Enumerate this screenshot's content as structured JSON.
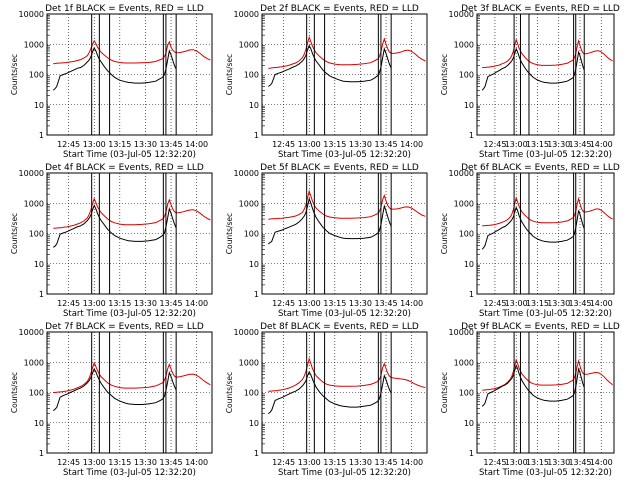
{
  "chart_data": {
    "type": "line",
    "layout": "3x3 grid of panels",
    "common": {
      "xlabel": "Start Time (03-Jul-05 12:32:20)",
      "ylabel": "Counts/sec",
      "x_tick_labels": [
        "12:45",
        "13:00",
        "13:15",
        "13:30",
        "13:45",
        "14:00"
      ],
      "x_tick_minutes": [
        45,
        60,
        75,
        90,
        105,
        120
      ],
      "xlim_minutes_after_12h": [
        32.33,
        129
      ],
      "yscale": "log",
      "ylim": [
        1,
        10000
      ],
      "y_tick_labels": [
        "1",
        "10",
        "100",
        "1000",
        "10000"
      ],
      "y_tick_values": [
        1,
        10,
        100,
        1000,
        10000
      ],
      "vertical_markers_minutes": [
        58.5,
        63,
        69,
        100.5,
        102,
        108
      ],
      "series": [
        {
          "name": "Events",
          "legend_word": "BLACK",
          "color": "#000000"
        },
        {
          "name": "LLD",
          "legend_word": "RED",
          "color": "#dd0000"
        }
      ],
      "time_minutes": [
        36,
        37,
        38,
        40,
        41,
        42,
        44,
        46,
        48,
        50,
        52,
        54,
        56,
        57,
        58,
        59,
        60,
        61,
        62,
        63,
        64,
        66,
        68,
        70,
        72,
        75,
        78,
        80,
        84,
        88,
        92,
        96,
        98,
        100,
        101,
        102,
        103,
        104,
        105,
        106,
        107,
        108,
        110,
        112,
        114,
        116,
        118,
        120,
        122,
        124,
        126,
        128
      ],
      "black_start_minute": 36,
      "black_end_minute": 108
    },
    "panels": [
      {
        "title": "Det 1f BLACK = Events, RED = LLD",
        "black": [
          30,
          34,
          40,
          90,
          95,
          100,
          110,
          125,
          140,
          160,
          170,
          200,
          260,
          300,
          380,
          550,
          750,
          600,
          420,
          320,
          260,
          180,
          130,
          100,
          80,
          65,
          58,
          55,
          52,
          52,
          55,
          60,
          70,
          80,
          95,
          150,
          300,
          600,
          450,
          300,
          200,
          150,
          null,
          null,
          null,
          null,
          null,
          null,
          null,
          null,
          null,
          null
        ],
        "red": [
          230,
          230,
          235,
          240,
          240,
          245,
          250,
          260,
          270,
          290,
          310,
          350,
          420,
          520,
          700,
          1000,
          1300,
          1050,
          800,
          650,
          540,
          430,
          350,
          300,
          270,
          250,
          240,
          240,
          240,
          245,
          250,
          270,
          300,
          330,
          380,
          500,
          900,
          1200,
          800,
          650,
          560,
          520,
          530,
          560,
          600,
          650,
          660,
          600,
          500,
          400,
          340,
          300
        ]
      },
      {
        "title": "Det 2f BLACK = Events, RED = LLD",
        "black": [
          40,
          44,
          50,
          100,
          105,
          110,
          120,
          135,
          150,
          170,
          190,
          220,
          280,
          330,
          420,
          650,
          900,
          700,
          480,
          360,
          280,
          200,
          140,
          110,
          90,
          75,
          65,
          60,
          58,
          58,
          60,
          65,
          75,
          90,
          110,
          170,
          350,
          700,
          500,
          330,
          220,
          160,
          null,
          null,
          null,
          null,
          null,
          null,
          null,
          null,
          null,
          null
        ],
        "red": [
          160,
          160,
          165,
          170,
          170,
          175,
          180,
          190,
          200,
          220,
          240,
          280,
          360,
          460,
          650,
          1100,
          1700,
          1200,
          850,
          650,
          520,
          400,
          320,
          270,
          240,
          220,
          210,
          210,
          210,
          215,
          225,
          245,
          280,
          320,
          380,
          550,
          1000,
          1500,
          1000,
          700,
          560,
          500,
          500,
          520,
          560,
          620,
          640,
          580,
          480,
          380,
          320,
          280
        ]
      },
      {
        "title": "Det 3f BLACK = Events, RED = LLD",
        "black": [
          30,
          34,
          40,
          85,
          90,
          95,
          105,
          120,
          135,
          155,
          170,
          200,
          250,
          290,
          360,
          500,
          700,
          560,
          400,
          300,
          240,
          170,
          125,
          100,
          80,
          66,
          58,
          55,
          52,
          52,
          55,
          60,
          68,
          78,
          95,
          150,
          280,
          550,
          420,
          280,
          190,
          140,
          null,
          null,
          null,
          null,
          null,
          null,
          null,
          null,
          null,
          null
        ],
        "red": [
          170,
          170,
          172,
          175,
          175,
          180,
          185,
          195,
          205,
          225,
          245,
          280,
          350,
          440,
          600,
          950,
          1400,
          1050,
          760,
          600,
          490,
          380,
          300,
          255,
          230,
          210,
          200,
          200,
          200,
          205,
          215,
          235,
          265,
          300,
          350,
          480,
          850,
          1300,
          900,
          650,
          530,
          480,
          490,
          520,
          560,
          600,
          610,
          560,
          470,
          380,
          320,
          280
        ]
      },
      {
        "title": "Det 4f BLACK = Events, RED = LLD",
        "black": [
          35,
          38,
          45,
          95,
          100,
          105,
          115,
          130,
          145,
          165,
          180,
          210,
          270,
          320,
          400,
          600,
          850,
          650,
          450,
          340,
          270,
          190,
          135,
          105,
          85,
          70,
          62,
          58,
          55,
          55,
          58,
          63,
          72,
          85,
          100,
          160,
          320,
          650,
          470,
          310,
          210,
          150,
          null,
          null,
          null,
          null,
          null,
          null,
          null,
          null,
          null,
          null
        ],
        "red": [
          150,
          150,
          152,
          155,
          155,
          160,
          165,
          175,
          185,
          205,
          225,
          260,
          330,
          420,
          580,
          950,
          1400,
          1050,
          760,
          600,
          490,
          380,
          300,
          250,
          225,
          205,
          195,
          195,
          195,
          200,
          210,
          230,
          260,
          300,
          350,
          500,
          900,
          1300,
          900,
          650,
          530,
          480,
          490,
          520,
          560,
          600,
          610,
          560,
          470,
          380,
          320,
          280
        ]
      },
      {
        "title": "Det 5f BLACK = Events, RED = LLD",
        "black": [
          45,
          50,
          55,
          110,
          115,
          120,
          130,
          145,
          160,
          180,
          200,
          240,
          310,
          370,
          480,
          800,
          1400,
          1000,
          650,
          460,
          340,
          230,
          160,
          125,
          100,
          85,
          75,
          70,
          68,
          68,
          70,
          75,
          85,
          100,
          120,
          190,
          400,
          800,
          560,
          360,
          240,
          170,
          null,
          null,
          null,
          null,
          null,
          null,
          null,
          null,
          null,
          null
        ],
        "red": [
          300,
          300,
          305,
          310,
          310,
          315,
          320,
          330,
          340,
          360,
          380,
          420,
          500,
          620,
          850,
          1500,
          2500,
          1700,
          1150,
          860,
          690,
          540,
          440,
          380,
          350,
          330,
          320,
          320,
          320,
          325,
          335,
          360,
          400,
          450,
          520,
          720,
          1300,
          1800,
          1200,
          850,
          700,
          640,
          640,
          660,
          700,
          750,
          760,
          690,
          580,
          480,
          410,
          370
        ]
      },
      {
        "title": "Det 6f BLACK = Events, RED = LLD",
        "black": [
          30,
          34,
          40,
          85,
          90,
          95,
          105,
          120,
          135,
          155,
          170,
          200,
          250,
          290,
          360,
          520,
          720,
          570,
          400,
          300,
          240,
          170,
          125,
          100,
          80,
          66,
          58,
          55,
          52,
          52,
          55,
          60,
          68,
          78,
          95,
          150,
          290,
          580,
          430,
          290,
          195,
          145,
          null,
          null,
          null,
          null,
          null,
          null,
          null,
          null,
          null,
          null
        ],
        "red": [
          180,
          180,
          182,
          185,
          185,
          190,
          195,
          205,
          215,
          235,
          255,
          290,
          360,
          450,
          620,
          1000,
          1500,
          1100,
          800,
          630,
          520,
          410,
          330,
          280,
          255,
          235,
          225,
          225,
          225,
          230,
          240,
          260,
          290,
          330,
          380,
          530,
          950,
          1400,
          950,
          680,
          560,
          510,
          520,
          550,
          590,
          640,
          650,
          590,
          490,
          400,
          340,
          300
        ]
      },
      {
        "title": "Det 7f BLACK = Events, RED = LLD",
        "black": [
          25,
          28,
          32,
          70,
          75,
          80,
          88,
          100,
          112,
          128,
          140,
          165,
          210,
          245,
          310,
          430,
          600,
          480,
          340,
          260,
          200,
          140,
          100,
          80,
          64,
          52,
          45,
          42,
          40,
          40,
          42,
          46,
          52,
          60,
          72,
          115,
          220,
          450,
          340,
          230,
          160,
          120,
          null,
          null,
          null,
          null,
          null,
          null,
          null,
          null,
          null,
          null
        ],
        "red": [
          100,
          100,
          102,
          105,
          105,
          108,
          112,
          120,
          128,
          142,
          158,
          185,
          235,
          300,
          420,
          650,
          950,
          720,
          520,
          410,
          330,
          260,
          205,
          175,
          160,
          145,
          140,
          140,
          140,
          143,
          150,
          165,
          185,
          210,
          245,
          340,
          600,
          850,
          600,
          430,
          350,
          320,
          330,
          350,
          375,
          400,
          405,
          370,
          310,
          250,
          210,
          180
        ]
      },
      {
        "title": "Det 8f BLACK = Events, RED = LLD",
        "black": [
          20,
          22,
          26,
          55,
          58,
          62,
          68,
          78,
          88,
          100,
          110,
          130,
          165,
          195,
          240,
          350,
          480,
          380,
          270,
          200,
          150,
          105,
          78,
          62,
          50,
          42,
          37,
          35,
          33,
          33,
          35,
          38,
          43,
          50,
          60,
          95,
          180,
          360,
          270,
          180,
          125,
          95,
          null,
          null,
          null,
          null,
          null,
          null,
          null,
          null,
          null,
          null
        ],
        "red": [
          110,
          110,
          112,
          115,
          115,
          118,
          122,
          130,
          140,
          155,
          175,
          210,
          270,
          340,
          480,
          800,
          1300,
          900,
          600,
          460,
          360,
          280,
          220,
          190,
          175,
          165,
          160,
          160,
          160,
          163,
          170,
          185,
          205,
          230,
          265,
          360,
          650,
          900,
          620,
          440,
          350,
          310,
          300,
          290,
          280,
          270,
          250,
          220,
          190,
          170,
          155,
          145
        ]
      },
      {
        "title": "Det 9f BLACK = Events, RED = LLD",
        "black": [
          35,
          38,
          45,
          90,
          95,
          100,
          110,
          125,
          140,
          160,
          175,
          205,
          260,
          300,
          380,
          550,
          780,
          620,
          430,
          320,
          250,
          175,
          128,
          100,
          80,
          66,
          58,
          55,
          52,
          52,
          55,
          60,
          68,
          78,
          95,
          150,
          300,
          600,
          450,
          300,
          200,
          148,
          null,
          null,
          null,
          null,
          null,
          null,
          null,
          null,
          null,
          null
        ],
        "red": [
          120,
          120,
          122,
          125,
          125,
          128,
          132,
          140,
          150,
          165,
          185,
          220,
          280,
          360,
          500,
          800,
          1200,
          900,
          650,
          510,
          410,
          320,
          255,
          215,
          195,
          180,
          175,
          175,
          175,
          178,
          185,
          200,
          225,
          255,
          300,
          420,
          750,
          1100,
          750,
          540,
          440,
          400,
          400,
          420,
          440,
          460,
          450,
          400,
          330,
          260,
          215,
          180
        ]
      }
    ]
  }
}
